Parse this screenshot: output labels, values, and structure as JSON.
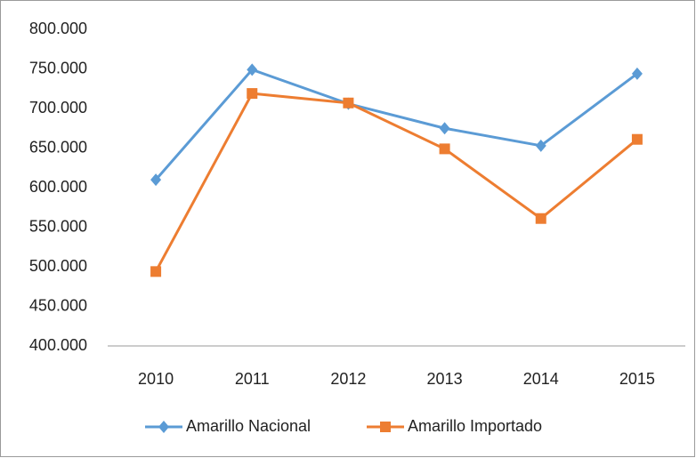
{
  "chart_data": {
    "type": "line",
    "categories": [
      "2010",
      "2011",
      "2012",
      "2013",
      "2014",
      "2015"
    ],
    "series": [
      {
        "name": "Amarillo Nacional",
        "color": "#5b9bd5",
        "marker": "diamond",
        "values": [
          610000,
          749000,
          706000,
          675000,
          653000,
          744000
        ]
      },
      {
        "name": "Amarillo Importado",
        "color": "#ed7d31",
        "marker": "square",
        "values": [
          494000,
          719000,
          707000,
          649000,
          561000,
          661000
        ]
      }
    ],
    "ylim": [
      400000,
      800000
    ],
    "yticks": [
      {
        "value": 400000,
        "label": "400.000"
      },
      {
        "value": 450000,
        "label": "450.000"
      },
      {
        "value": 500000,
        "label": "500.000"
      },
      {
        "value": 550000,
        "label": "550.000"
      },
      {
        "value": 600000,
        "label": "600.000"
      },
      {
        "value": 650000,
        "label": "650.000"
      },
      {
        "value": 700000,
        "label": "700.000"
      },
      {
        "value": 750000,
        "label": "750.000"
      },
      {
        "value": 800000,
        "label": "800.000"
      }
    ],
    "grid": false,
    "legend": "bottom"
  }
}
